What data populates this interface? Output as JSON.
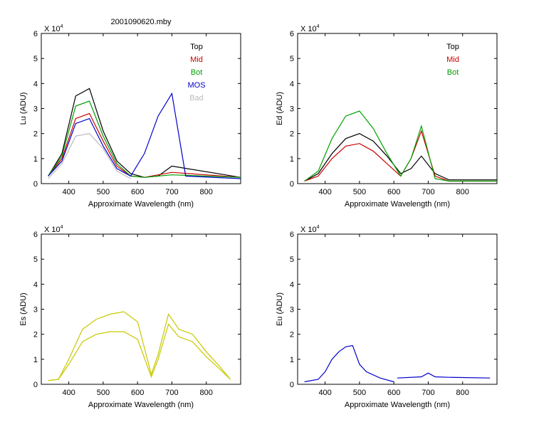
{
  "figure_title": "2001090620.mby",
  "chart_data": [
    {
      "type": "line",
      "title": "2001090620.mby",
      "xlabel": "Approximate Wavelength (nm)",
      "ylabel": "Lu (ADU)",
      "exponent_base": "X 10",
      "exponent_power": "4",
      "xlim": [
        320,
        900
      ],
      "ylim": [
        0,
        6
      ],
      "xticks": [
        "400",
        "500",
        "600",
        "700",
        "800"
      ],
      "yticks": [
        "0",
        "1",
        "2",
        "3",
        "4",
        "5",
        "6"
      ],
      "grid": false,
      "legend_position": "top-right",
      "series": [
        {
          "name": "Top",
          "color": "#000000",
          "x": [
            340,
            380,
            420,
            460,
            500,
            540,
            580,
            620,
            660,
            700,
            900
          ],
          "y": [
            0.3,
            1.2,
            3.5,
            3.8,
            2.1,
            0.9,
            0.4,
            0.25,
            0.3,
            0.7,
            0.25
          ]
        },
        {
          "name": "Mid",
          "color": "#cc0000",
          "x": [
            340,
            380,
            420,
            460,
            500,
            540,
            580,
            620,
            660,
            700,
            900
          ],
          "y": [
            0.3,
            1.0,
            2.6,
            2.8,
            1.7,
            0.7,
            0.3,
            0.25,
            0.35,
            0.45,
            0.25
          ]
        },
        {
          "name": "Bot",
          "color": "#00a000",
          "x": [
            340,
            380,
            420,
            460,
            500,
            540,
            580,
            620,
            660,
            700,
            900
          ],
          "y": [
            0.3,
            1.1,
            3.1,
            3.3,
            1.9,
            0.8,
            0.3,
            0.25,
            0.3,
            0.35,
            0.25
          ]
        },
        {
          "name": "MOS",
          "color": "#0000cc",
          "x": [
            340,
            380,
            420,
            460,
            500,
            540,
            580,
            620,
            660,
            700,
            740,
            900
          ],
          "y": [
            0.3,
            0.9,
            2.4,
            2.6,
            1.5,
            0.6,
            0.3,
            1.2,
            2.7,
            3.6,
            0.3,
            0.2
          ]
        },
        {
          "name": "Bad",
          "color": "#bbbbbb",
          "x": [
            340,
            380,
            420,
            460,
            500,
            540,
            580
          ],
          "y": [
            0.2,
            0.8,
            1.9,
            2.0,
            1.4,
            0.5,
            0.2
          ]
        }
      ]
    },
    {
      "type": "line",
      "title": "",
      "xlabel": "Approximate Wavelength (nm)",
      "ylabel": "Ed  (ADU)",
      "exponent_base": "X 10",
      "exponent_power": "4",
      "xlim": [
        320,
        900
      ],
      "ylim": [
        0,
        6
      ],
      "xticks": [
        "400",
        "500",
        "600",
        "700",
        "800"
      ],
      "yticks": [
        "0",
        "1",
        "2",
        "3",
        "4",
        "5",
        "6"
      ],
      "grid": false,
      "legend_position": "top-right",
      "series": [
        {
          "name": "Top",
          "color": "#000000",
          "x": [
            340,
            380,
            420,
            460,
            500,
            540,
            580,
            620,
            650,
            680,
            720,
            760,
            900
          ],
          "y": [
            0.1,
            0.4,
            1.2,
            1.8,
            2.0,
            1.7,
            1.1,
            0.4,
            0.6,
            1.1,
            0.4,
            0.15,
            0.15
          ]
        },
        {
          "name": "Mid",
          "color": "#cc0000",
          "x": [
            340,
            380,
            420,
            460,
            500,
            540,
            580,
            620,
            650,
            680,
            720,
            760,
            900
          ],
          "y": [
            0.1,
            0.3,
            1.0,
            1.5,
            1.6,
            1.3,
            0.8,
            0.3,
            1.0,
            2.1,
            0.3,
            0.1,
            0.1
          ]
        },
        {
          "name": "Bot",
          "color": "#00a000",
          "x": [
            340,
            380,
            420,
            460,
            500,
            540,
            580,
            620,
            650,
            680,
            720,
            760,
            900
          ],
          "y": [
            0.1,
            0.5,
            1.8,
            2.7,
            2.9,
            2.2,
            1.2,
            0.3,
            1.0,
            2.3,
            0.2,
            0.1,
            0.1
          ]
        }
      ]
    },
    {
      "type": "line",
      "title": "",
      "xlabel": "Approximate Wavelength (nm)",
      "ylabel": "Es  (ADU)",
      "exponent_base": "X 10",
      "exponent_power": "4",
      "xlim": [
        320,
        900
      ],
      "ylim": [
        0,
        6
      ],
      "xticks": [
        "400",
        "500",
        "600",
        "700",
        "800"
      ],
      "yticks": [
        "0",
        "1",
        "2",
        "3",
        "4",
        "5",
        "6"
      ],
      "grid": false,
      "legend_position": "none",
      "series": [
        {
          "color": "#c8c800",
          "x": [
            340,
            370,
            400,
            440,
            480,
            520,
            560,
            600,
            640,
            660,
            690,
            720,
            760,
            800,
            840,
            870
          ],
          "y": [
            0.15,
            0.2,
            1.0,
            2.2,
            2.6,
            2.8,
            2.9,
            2.5,
            0.4,
            1.2,
            2.8,
            2.2,
            2.0,
            1.3,
            0.7,
            0.2
          ]
        },
        {
          "color": "#c8c800",
          "x": [
            340,
            370,
            400,
            440,
            480,
            520,
            560,
            600,
            640,
            660,
            690,
            720,
            760,
            800,
            840,
            870
          ],
          "y": [
            0.15,
            0.2,
            0.8,
            1.7,
            2.0,
            2.1,
            2.1,
            1.8,
            0.3,
            1.0,
            2.4,
            1.9,
            1.7,
            1.1,
            0.6,
            0.2
          ]
        }
      ]
    },
    {
      "type": "line",
      "title": "",
      "xlabel": "Approximate Wavelength (nm)",
      "ylabel": "Eu  (ADU)",
      "exponent_base": "X 10",
      "exponent_power": "4",
      "xlim": [
        320,
        900
      ],
      "ylim": [
        0,
        6
      ],
      "xticks": [
        "400",
        "500",
        "600",
        "700",
        "800"
      ],
      "yticks": [
        "0",
        "1",
        "2",
        "3",
        "4",
        "5",
        "6"
      ],
      "grid": false,
      "legend_position": "none",
      "series": [
        {
          "color": "#0000cc",
          "x": [
            340,
            380,
            400,
            420,
            440,
            460,
            480,
            500,
            520,
            560,
            600
          ],
          "y": [
            0.1,
            0.2,
            0.5,
            1.0,
            1.3,
            1.5,
            1.55,
            0.8,
            0.5,
            0.25,
            0.1
          ]
        },
        {
          "color": "#0000cc",
          "x": [
            610,
            680,
            700,
            720,
            760,
            800,
            880
          ],
          "y": [
            0.25,
            0.3,
            0.45,
            0.3,
            0.28,
            0.27,
            0.25
          ]
        }
      ]
    }
  ]
}
